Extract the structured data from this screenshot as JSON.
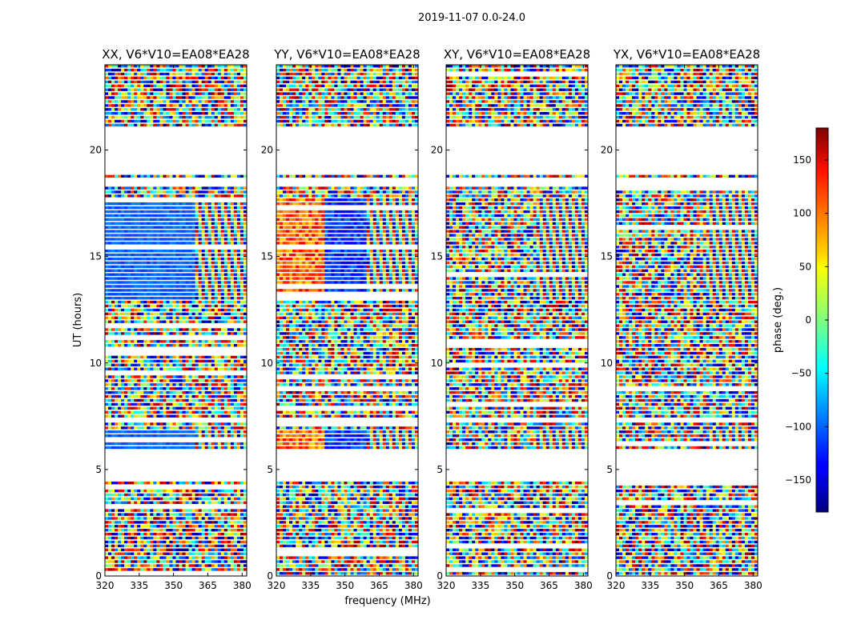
{
  "figure": {
    "suptitle": "2019-11-07 0.0-24.0",
    "xlabel": "frequency (MHz)",
    "ylabel": "UT (hours)"
  },
  "colorbar": {
    "label": "phase (deg.)",
    "ticks": [
      150,
      100,
      50,
      0,
      -50,
      -100,
      -150
    ],
    "tick_labels": [
      "150",
      "100",
      "50",
      "0",
      "−50",
      "−100",
      "−150"
    ],
    "range": [
      -180,
      180
    ],
    "colormap": "jet"
  },
  "chart_data": {
    "type": "heatmap",
    "x_unit": "MHz",
    "y_unit": "hours",
    "xlim": [
      320,
      382
    ],
    "ylim": [
      0,
      24
    ],
    "x_ticks": [
      320,
      335,
      350,
      365,
      380
    ],
    "y_ticks": [
      0,
      5,
      10,
      15,
      20
    ],
    "value_range": [
      -180,
      180
    ],
    "panels": [
      {
        "title": "XX, V6*V10=EA08*EA28"
      },
      {
        "title": "YY, V6*V10=EA08*EA28"
      },
      {
        "title": "XY, V6*V10=EA08*EA28"
      },
      {
        "title": "YX, V6*V10=EA08*EA28"
      }
    ],
    "flagged_ut_ranges": [
      [
        4.5,
        5.9
      ],
      [
        18.9,
        21.0
      ],
      [
        7.2,
        7.4
      ],
      [
        18.3,
        18.6
      ]
    ],
    "coherent_ut_ranges": [
      [
        6.0,
        6.9
      ],
      [
        13.0,
        17.7
      ]
    ]
  }
}
